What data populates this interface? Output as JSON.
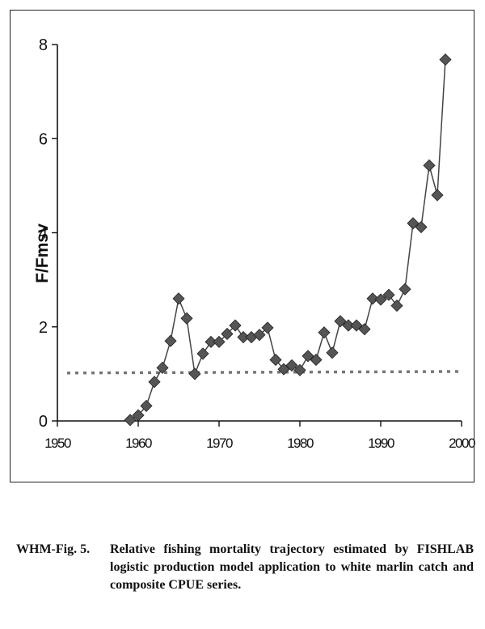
{
  "chart_data": {
    "type": "line",
    "xlabel": "",
    "ylabel": "F/Fmsv",
    "xlim": [
      1950,
      2000
    ],
    "ylim": [
      0,
      8
    ],
    "xticks": [
      "1950",
      "1960",
      "1970",
      "1980",
      "1990",
      "2000"
    ],
    "yticks": [
      "0",
      "2",
      "4",
      "6",
      "8"
    ],
    "series": [
      {
        "marker": "diamond",
        "color": "#555555",
        "x": [
          1959,
          1960,
          1961,
          1962,
          1963,
          1964,
          1965,
          1966,
          1967,
          1968,
          1969,
          1970,
          1971,
          1972,
          1973,
          1974,
          1975,
          1976,
          1977,
          1978,
          1979,
          1980,
          1981,
          1982,
          1983,
          1984,
          1985,
          1986,
          1987,
          1988,
          1989,
          1990,
          1991,
          1992,
          1993,
          1994,
          1995,
          1996,
          1997,
          1998
        ],
        "y": [
          0.02,
          0.12,
          0.32,
          0.83,
          1.13,
          1.7,
          2.6,
          2.18,
          1.0,
          1.43,
          1.68,
          1.68,
          1.85,
          2.03,
          1.78,
          1.78,
          1.83,
          1.98,
          1.3,
          1.1,
          1.18,
          1.08,
          1.38,
          1.3,
          1.88,
          1.45,
          2.12,
          2.03,
          2.03,
          1.95,
          2.6,
          2.58,
          2.68,
          2.45,
          2.8,
          4.2,
          4.12,
          5.43,
          4.8,
          7.68
        ]
      }
    ],
    "reference_line": {
      "style": "dotted",
      "y_start": 1.02,
      "y_end": 1.05
    },
    "grid": false,
    "legend": "none"
  },
  "caption": {
    "label": "WHM-Fig. 5.",
    "text": "Relative fishing mortality trajectory estimated by FISHLAB logistic production model application to white marlin catch and composite CPUE series."
  }
}
